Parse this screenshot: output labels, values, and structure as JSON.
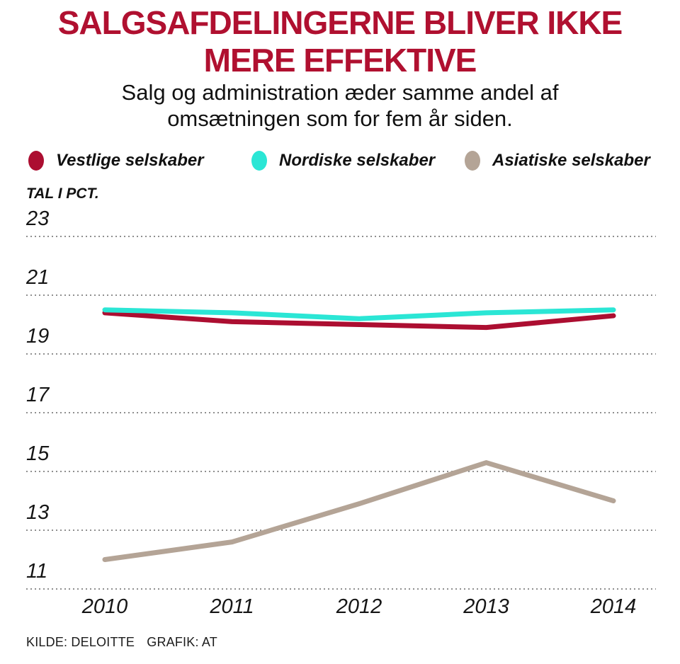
{
  "footer": {
    "source": "KILDE: DELOITTE",
    "credit": "GRAFIK: AT"
  },
  "chart_data": {
    "type": "line",
    "title": "SALGSAFDELINGERNE BLIVER IKKE MERE EFFEKTIVE",
    "subtitle": "Salg og administration æder samme andel af omsætningen som for fem år siden.",
    "ylabel": "TAL I PCT.",
    "xlabel": "",
    "x": [
      2010,
      2011,
      2012,
      2013,
      2014
    ],
    "series": [
      {
        "name": "Vestlige selskaber",
        "color": "#AC0E31",
        "values": [
          20.4,
          20.1,
          20.0,
          19.9,
          20.3
        ]
      },
      {
        "name": "Nordiske selskaber",
        "color": "#2BE6D5",
        "values": [
          20.5,
          20.4,
          20.2,
          20.4,
          20.5
        ]
      },
      {
        "name": "Asiatiske selskaber",
        "color": "#B4A496",
        "values": [
          12.0,
          12.6,
          13.9,
          15.3,
          14.0
        ]
      }
    ],
    "yticks": [
      23,
      21,
      19,
      17,
      15,
      13,
      11
    ],
    "ylim": [
      10.5,
      23.5
    ],
    "grid": "horizontal-dotted",
    "legend_position": "top"
  }
}
